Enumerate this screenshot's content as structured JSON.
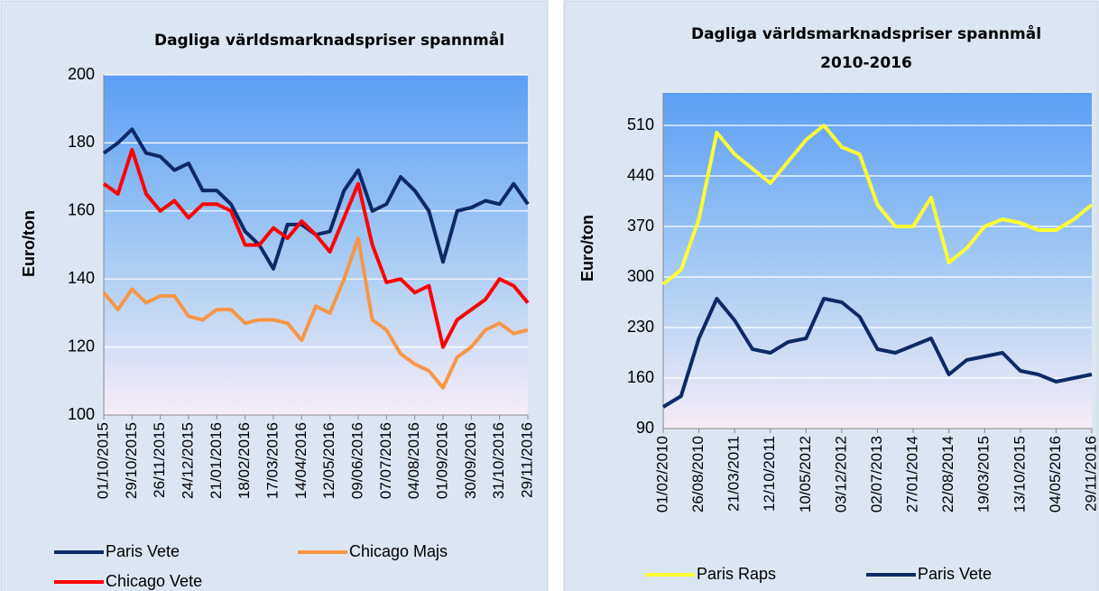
{
  "chart_data": [
    {
      "type": "line",
      "title": "Dagliga världsmarknadspriser spannmål",
      "y_label": "Euro/ton",
      "categories": [
        "01/10/2015",
        null,
        "29/10/2015",
        null,
        "26/11/2015",
        null,
        "24/12/2015",
        null,
        "21/01/2016",
        null,
        "18/02/2016",
        null,
        "17/03/2016",
        null,
        "14/04/2016",
        null,
        "12/05/2016",
        null,
        "09/06/2016",
        null,
        "07/07/2016",
        null,
        "04/08/2016",
        null,
        "01/09/2016",
        null,
        "30/09/2016",
        null,
        "31/10/2016",
        null,
        "29/11/2016"
      ],
      "series": [
        {
          "name": "Paris Vete",
          "color": "#0d2a66",
          "values": [
            177,
            180,
            184,
            177,
            176,
            172,
            174,
            166,
            166,
            162,
            154,
            150,
            143,
            156,
            156,
            153,
            154,
            166,
            172,
            160,
            162,
            170,
            166,
            160,
            145,
            160,
            161,
            163,
            162,
            168,
            162
          ]
        },
        {
          "name": "Chicago Majs",
          "color": "#f79646",
          "values": [
            136,
            131,
            137,
            133,
            135,
            135,
            129,
            128,
            131,
            131,
            127,
            128,
            128,
            127,
            122,
            132,
            130,
            140,
            152,
            128,
            125,
            118,
            115,
            113,
            108,
            117,
            120,
            125,
            127,
            124,
            125
          ]
        },
        {
          "name": "Chicago Vete",
          "color": "#ff0000",
          "values": [
            168,
            165,
            178,
            165,
            160,
            163,
            158,
            162,
            162,
            160,
            150,
            150,
            155,
            152,
            157,
            153,
            148,
            158,
            168,
            150,
            139,
            140,
            136,
            138,
            120,
            128,
            131,
            134,
            140,
            138,
            133
          ]
        }
      ],
      "ylim": [
        100,
        200
      ],
      "yticks": [
        100,
        120,
        140,
        160,
        180,
        200
      ],
      "grid": true
    },
    {
      "type": "line",
      "title": "Dagliga världsmarknadspriser spannmål 2010-2016",
      "y_label": "Euro/ton",
      "categories": [
        "01/02/2010",
        null,
        "26/08/2010",
        null,
        "21/03/2011",
        null,
        "12/10/2011",
        null,
        "10/05/2012",
        null,
        "03/12/2012",
        null,
        "02/07/2013",
        null,
        "27/01/2014",
        null,
        "22/08/2014",
        null,
        "19/03/2015",
        null,
        "13/10/2015",
        null,
        "04/05/2016",
        null,
        "29/11/2016"
      ],
      "series": [
        {
          "name": "Paris Raps",
          "color": "#ffff33",
          "values": [
            290,
            310,
            380,
            500,
            470,
            450,
            430,
            460,
            490,
            510,
            480,
            470,
            400,
            370,
            370,
            410,
            320,
            340,
            370,
            380,
            375,
            365,
            365,
            380,
            400
          ]
        },
        {
          "name": "Paris Vete",
          "color": "#0d2a66",
          "values": [
            120,
            135,
            215,
            270,
            240,
            200,
            195,
            210,
            215,
            270,
            265,
            245,
            200,
            195,
            205,
            215,
            165,
            185,
            190,
            195,
            170,
            165,
            155,
            160,
            165
          ]
        }
      ],
      "ylim": [
        90,
        555
      ],
      "yticks": [
        90,
        160,
        230,
        300,
        370,
        440,
        510
      ],
      "grid": true
    }
  ]
}
